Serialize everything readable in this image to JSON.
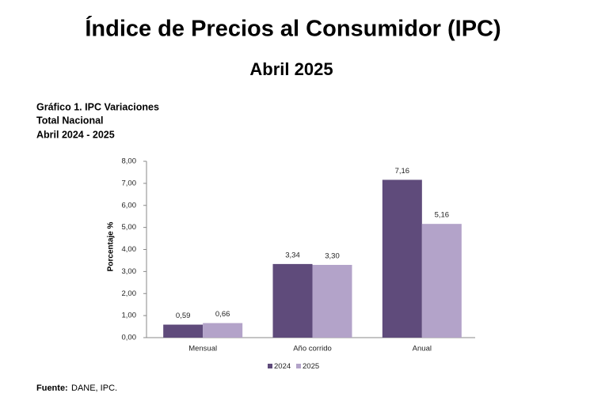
{
  "chart_data": {
    "type": "bar",
    "title": "Índice de Precios al Consumidor (IPC)",
    "subtitle": "Abril 2025",
    "chart_title": [
      "Gráfico 1. IPC Variaciones",
      "Total Nacional",
      "Abril 2024 - 2025"
    ],
    "ylabel": "Porcentaje %",
    "categories": [
      "Mensual",
      "Año corrido",
      "Anual"
    ],
    "series": [
      {
        "name": "2024",
        "color": "#5f4b7b",
        "values": [
          0.59,
          3.34,
          7.16
        ],
        "value_labels": [
          "0,59",
          "3,34",
          "7,16"
        ]
      },
      {
        "name": "2025",
        "color": "#b3a3c9",
        "values": [
          0.66,
          3.3,
          5.16
        ],
        "value_labels": [
          "0,66",
          "3,30",
          "5,16"
        ]
      }
    ],
    "ylim": [
      0,
      8
    ],
    "yticks": [
      {
        "value": 0,
        "label": "0,00"
      },
      {
        "value": 1,
        "label": "1,00"
      },
      {
        "value": 2,
        "label": "2,00"
      },
      {
        "value": 3,
        "label": "3,00"
      },
      {
        "value": 4,
        "label": "4,00"
      },
      {
        "value": 5,
        "label": "5,00"
      },
      {
        "value": 6,
        "label": "6,00"
      },
      {
        "value": 7,
        "label": "7,00"
      },
      {
        "value": 8,
        "label": "8,00"
      }
    ],
    "grid": false,
    "legend": "bottom",
    "source_label": "Fuente:",
    "source": "DANE, IPC."
  }
}
